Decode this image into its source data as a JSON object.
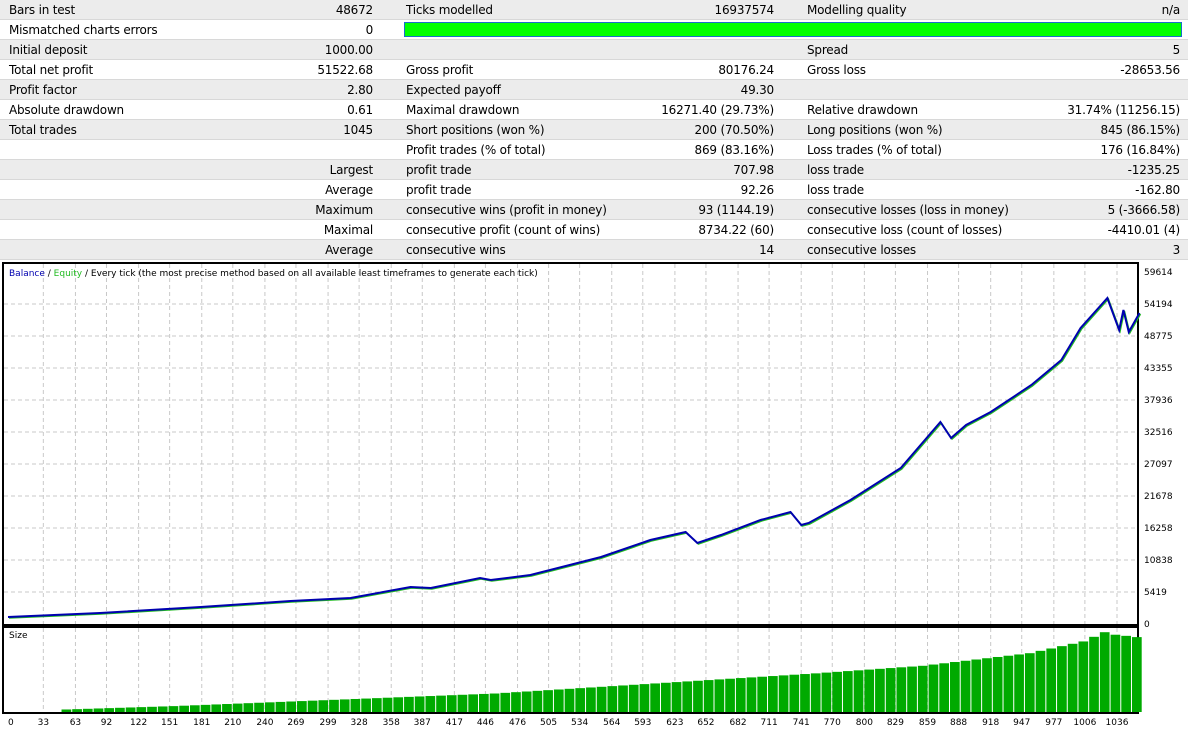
{
  "report": {
    "rows": [
      {
        "l1": "Bars in test",
        "v1": "48672",
        "l2": "Ticks modelled",
        "v2": "16937574",
        "l3": "Modelling quality",
        "v3": "n/a"
      },
      {
        "l1": "Mismatched charts errors",
        "v1": "0",
        "quality_bar": 1.0
      },
      {
        "l1": "Initial deposit",
        "v1": "1000.00",
        "l3": "Spread",
        "v3": "5"
      },
      {
        "l1": "Total net profit",
        "v1": "51522.68",
        "l2": "Gross profit",
        "v2": "80176.24",
        "l3": "Gross loss",
        "v3": "-28653.56"
      },
      {
        "l1": "Profit factor",
        "v1": "2.80",
        "l2": "Expected payoff",
        "v2": "49.30"
      },
      {
        "l1": "Absolute drawdown",
        "v1": "0.61",
        "l2": "Maximal drawdown",
        "v2": "16271.40 (29.73%)",
        "l3": "Relative drawdown",
        "v3": "31.74% (11256.15)"
      },
      {
        "l1": "Total trades",
        "v1": "1045",
        "l2": "Short positions (won %)",
        "v2": "200 (70.50%)",
        "l3": "Long positions (won %)",
        "v3": "845 (86.15%)"
      },
      {
        "l2": "Profit trades (% of total)",
        "v2": "869 (83.16%)",
        "l3": "Loss trades (% of total)",
        "v3": "176 (16.84%)"
      },
      {
        "r1": "Largest",
        "l2": "profit trade",
        "v2": "707.98",
        "l3": "loss trade",
        "v3": "-1235.25"
      },
      {
        "r1": "Average",
        "l2": "profit trade",
        "v2": "92.26",
        "l3": "loss trade",
        "v3": "-162.80"
      },
      {
        "r1": "Maximum",
        "l2": "consecutive wins (profit in money)",
        "v2": "93 (1144.19)",
        "l3": "consecutive losses (loss in money)",
        "v3": "5 (-3666.58)"
      },
      {
        "r1": "Maximal",
        "l2": "consecutive profit (count of wins)",
        "v2": "8734.22 (60)",
        "l3": "consecutive loss (count of losses)",
        "v3": "-4410.01 (4)"
      },
      {
        "r1": "Average",
        "l2": "consecutive wins",
        "v2": "14",
        "l3": "consecutive losses",
        "v3": "3"
      }
    ]
  },
  "chart_data": {
    "type": "line",
    "legend": {
      "balance": "Balance",
      "sep1": " / ",
      "equity": "Equity",
      "sep2": " / ",
      "mode": "Every tick (the most precise method based on all available least timeframes to generate each tick)"
    },
    "colors": {
      "balance": "#0000b0",
      "equity": "#22bb22",
      "size": "#00aa00"
    },
    "y_ticks": [
      "59614",
      "54194",
      "48775",
      "43355",
      "37936",
      "32516",
      "27097",
      "21678",
      "16258",
      "10838",
      "5419",
      "0"
    ],
    "ylim": [
      0,
      59614
    ],
    "x_ticks": [
      "0",
      "33",
      "63",
      "92",
      "122",
      "151",
      "181",
      "210",
      "240",
      "269",
      "299",
      "328",
      "358",
      "387",
      "417",
      "446",
      "476",
      "505",
      "534",
      "564",
      "593",
      "623",
      "652",
      "682",
      "711",
      "741",
      "770",
      "800",
      "829",
      "859",
      "888",
      "918",
      "947",
      "977",
      "1006",
      "1036"
    ],
    "xlim": [
      0,
      1036
    ],
    "balance": {
      "x": [
        0,
        86,
        180,
        264,
        320,
        376,
        395,
        441,
        451,
        488,
        554,
        600,
        633,
        644,
        666,
        703,
        731,
        741,
        748,
        787,
        834,
        871,
        881,
        895,
        918,
        956,
        984,
        1002,
        1027,
        1038,
        1042,
        1047,
        1057
      ],
      "y": [
        1185,
        1863,
        2879,
        3895,
        4403,
        6266,
        6097,
        7790,
        7452,
        8299,
        11347,
        14226,
        15581,
        13718,
        15073,
        17613,
        18968,
        16766,
        17105,
        21001,
        26420,
        34211,
        31501,
        33703,
        35905,
        40477,
        44711,
        50131,
        55212,
        49793,
        53180,
        49454,
        52672
      ]
    },
    "size_label": "Size",
    "size_levels": {
      "x": [
        50,
        150,
        250,
        350,
        450,
        550,
        650,
        750,
        850,
        950,
        1000,
        1020,
        1030,
        1045,
        1057
      ],
      "y": [
        0.03,
        0.07,
        0.12,
        0.17,
        0.22,
        0.3,
        0.38,
        0.46,
        0.55,
        0.7,
        0.84,
        0.95,
        0.92,
        0.9,
        0.88
      ]
    }
  }
}
